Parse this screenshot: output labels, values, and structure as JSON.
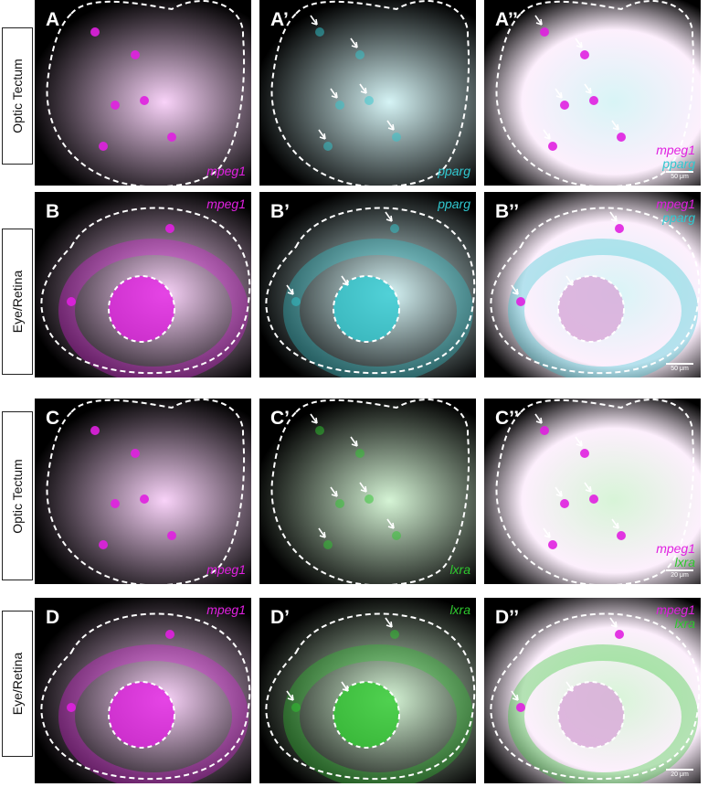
{
  "row_labels": [
    "Optic Tectum",
    "Eye/Retina",
    "Optic Tectum",
    "Eye/Retina"
  ],
  "colors": {
    "mpeg1": "#e020e0",
    "pparg": "#30c8d0",
    "lxra": "#2ec82e"
  },
  "panels": [
    {
      "label": "A",
      "channels": [
        "mpeg1"
      ],
      "scale": ""
    },
    {
      "label": "A’",
      "channels": [
        "pparg"
      ],
      "scale": ""
    },
    {
      "label": "A’’",
      "channels": [
        "mpeg1",
        "pparg"
      ],
      "scale": "50 μm"
    },
    {
      "label": "B",
      "channels": [
        "mpeg1"
      ],
      "scale": ""
    },
    {
      "label": "B’",
      "channels": [
        "pparg"
      ],
      "scale": ""
    },
    {
      "label": "B’’",
      "channels": [
        "mpeg1",
        "pparg"
      ],
      "scale": "50 μm"
    },
    {
      "label": "C",
      "channels": [
        "mpeg1"
      ],
      "scale": ""
    },
    {
      "label": "C’",
      "channels": [
        "lxra"
      ],
      "scale": ""
    },
    {
      "label": "C’’",
      "channels": [
        "mpeg1",
        "lxra"
      ],
      "scale": "20 μm"
    },
    {
      "label": "D",
      "channels": [
        "mpeg1"
      ],
      "scale": ""
    },
    {
      "label": "D’",
      "channels": [
        "lxra"
      ],
      "scale": ""
    },
    {
      "label": "D’’",
      "channels": [
        "mpeg1",
        "lxra"
      ],
      "scale": "20 μm"
    }
  ]
}
